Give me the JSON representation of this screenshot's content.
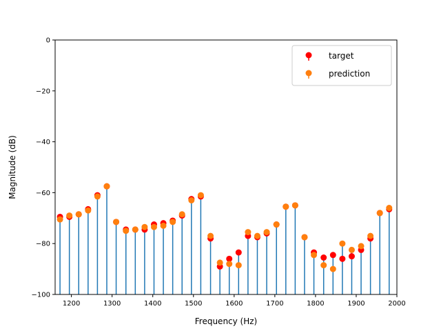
{
  "chart_data": {
    "type": "stem",
    "xlabel": "Frequency (Hz)",
    "ylabel": "Magnitude (dB)",
    "xlim": [
      1160,
      2000
    ],
    "ylim": [
      -100,
      0
    ],
    "baseline": -100,
    "x_ticks": [
      1200,
      1300,
      1400,
      1500,
      1600,
      1700,
      1800,
      1900,
      2000
    ],
    "y_ticks": [
      0,
      -20,
      -40,
      -60,
      -80,
      -100
    ],
    "y_tick_labels": [
      "0",
      "−20",
      "−40",
      "−60",
      "−80",
      "−100"
    ],
    "grid": false,
    "legend_position": "top-right",
    "stem_color": "#1f77b4",
    "x": [
      1172,
      1195,
      1218,
      1241,
      1264,
      1287,
      1310,
      1334,
      1357,
      1380,
      1403,
      1426,
      1449,
      1472,
      1495,
      1518,
      1542,
      1565,
      1588,
      1611,
      1634,
      1657,
      1680,
      1704,
      1727,
      1750,
      1773,
      1796,
      1820,
      1843,
      1866,
      1889,
      1912,
      1935,
      1958,
      1981
    ],
    "series": [
      {
        "name": "target",
        "color": "#ff0000",
        "values": [
          -69.5,
          -69.5,
          -68.5,
          -66.5,
          -61.0,
          -57.5,
          -71.5,
          -74.5,
          -74.5,
          -74.5,
          -72.5,
          -72.0,
          -71.0,
          -69.0,
          -62.5,
          -61.5,
          -78.0,
          -89.0,
          -86.0,
          -83.5,
          -77.0,
          -77.5,
          -76.0,
          -72.5,
          -65.5,
          -65.0,
          -77.5,
          -83.5,
          -85.5,
          -84.5,
          -86.0,
          -85.0,
          -82.5,
          -78.0,
          -68.0,
          -66.5
        ]
      },
      {
        "name": "prediction",
        "color": "#ff7f0e",
        "values": [
          -70.5,
          -69.0,
          -68.5,
          -67.0,
          -61.5,
          -57.5,
          -71.5,
          -75.0,
          -74.5,
          -73.5,
          -73.5,
          -73.0,
          -71.5,
          -68.5,
          -63.0,
          -61.0,
          -77.0,
          -87.5,
          -88.0,
          -88.5,
          -75.5,
          -77.0,
          -75.5,
          -72.5,
          -65.5,
          -65.0,
          -77.5,
          -84.5,
          -88.5,
          -90.0,
          -80.0,
          -82.5,
          -81.0,
          -77.0,
          -68.0,
          -66.0
        ]
      }
    ]
  }
}
